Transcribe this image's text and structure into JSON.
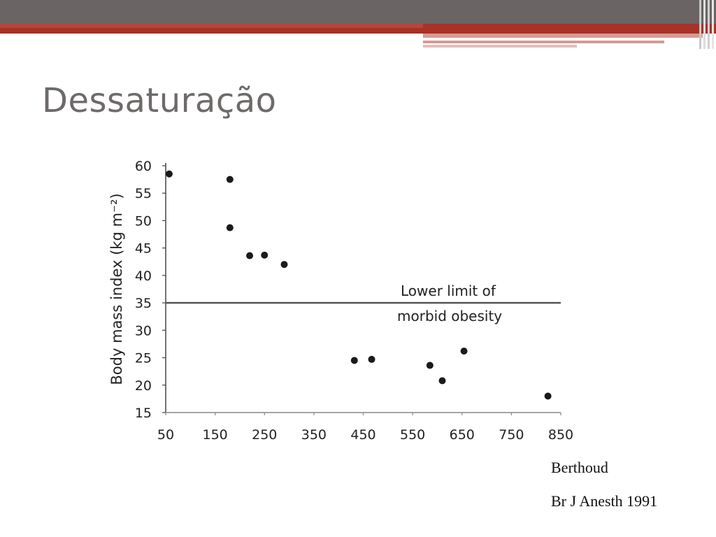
{
  "slide": {
    "title": "Dessaturação",
    "citation_author": "Berthoud",
    "citation_journal": "Br J Anesth 1991"
  },
  "colors": {
    "header_gray": "#6a6464",
    "header_red": "#a83226",
    "header_pink": "#d79a92",
    "point": "#1a1a1a",
    "threshold_line": "#555555"
  },
  "chart_data": {
    "type": "scatter",
    "title": "",
    "xlabel": "",
    "ylabel": "Body mass index (kg m⁻²)",
    "xlim": [
      50,
      850
    ],
    "ylim": [
      15,
      60
    ],
    "xticks": [
      50,
      150,
      250,
      350,
      450,
      550,
      650,
      750,
      850
    ],
    "yticks": [
      15,
      20,
      25,
      30,
      35,
      40,
      45,
      50,
      55,
      60
    ],
    "grid": false,
    "threshold": {
      "y": 35,
      "label_line1": "Lower limit of",
      "label_line2": "morbid obesity"
    },
    "points": [
      {
        "x": 57,
        "y": 58.5
      },
      {
        "x": 180,
        "y": 57.5
      },
      {
        "x": 180,
        "y": 48.7
      },
      {
        "x": 220,
        "y": 43.6
      },
      {
        "x": 250,
        "y": 43.7
      },
      {
        "x": 290,
        "y": 42
      },
      {
        "x": 432,
        "y": 24.5
      },
      {
        "x": 467,
        "y": 24.7
      },
      {
        "x": 585,
        "y": 23.6
      },
      {
        "x": 610,
        "y": 20.8
      },
      {
        "x": 654,
        "y": 26.2
      },
      {
        "x": 824,
        "y": 18
      }
    ]
  }
}
